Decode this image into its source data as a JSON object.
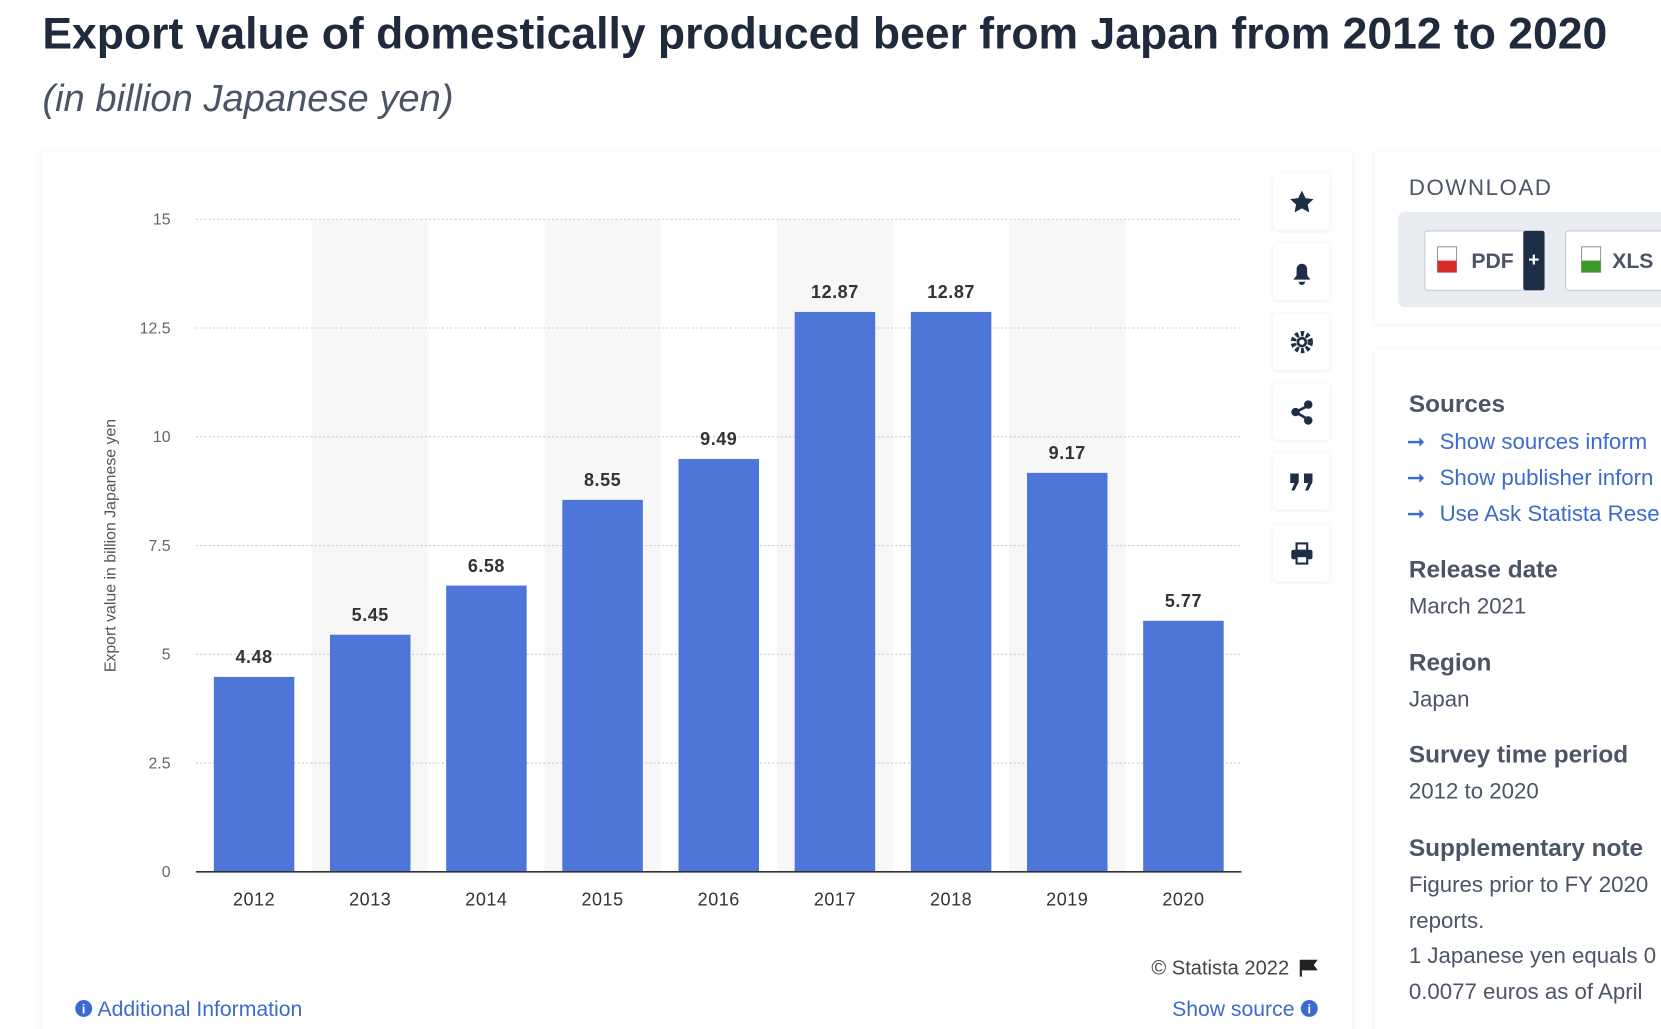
{
  "header": {
    "title": "Export value of domestically produced beer from Japan from 2012 to 2020",
    "subtitle": "(in billion Japanese yen)"
  },
  "chart_data": {
    "type": "bar",
    "y_axis_label": "Export value in billion Japanese yen",
    "categories": [
      "2012",
      "2013",
      "2014",
      "2015",
      "2016",
      "2017",
      "2018",
      "2019",
      "2020"
    ],
    "values": [
      4.48,
      5.45,
      6.58,
      8.55,
      9.49,
      12.87,
      12.87,
      9.17,
      5.77
    ],
    "color": "#4e76d9",
    "ylim": [
      0,
      15
    ],
    "yticks": [
      0,
      2.5,
      5,
      7.5,
      10,
      12.5,
      15
    ],
    "grid": true
  },
  "footer": {
    "credit": "© Statista 2022",
    "additional_info": "Additional Information",
    "show_source": "Show source"
  },
  "sidebar": {
    "download": "DOWNLOAD",
    "buttons": [
      "PDF",
      "XLS"
    ],
    "sources_heading": "Sources",
    "sources_links": [
      "Show sources inform",
      "Show publisher inforn",
      "Use Ask Statista Rese"
    ],
    "release_heading": "Release date",
    "release": "March 2021",
    "region_heading": "Region",
    "region": "Japan",
    "period_heading": "Survey time period",
    "period": "2012 to 2020",
    "notes_heading": "Supplementary note",
    "notes": [
      "Figures prior to FY 2020",
      "reports.",
      "1 Japanese yen equals 0",
      "0.0077 euros as of April"
    ]
  }
}
